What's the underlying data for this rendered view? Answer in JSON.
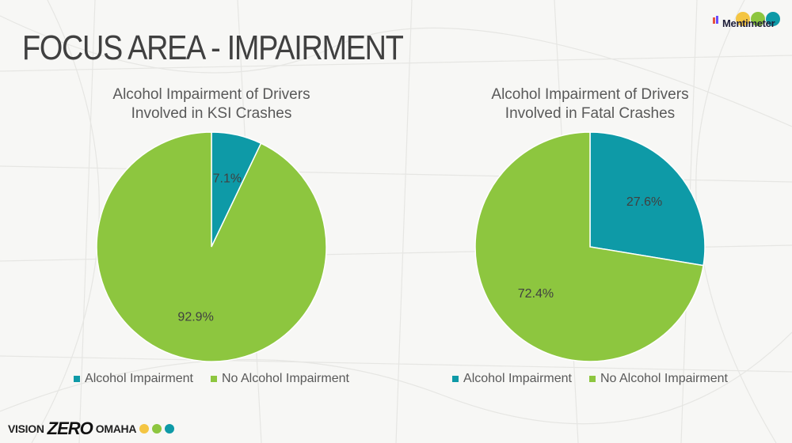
{
  "slide": {
    "title": "FOCUS AREA - IMPAIRMENT",
    "branding": {
      "mentimeter_label": "Mentimeter",
      "footer_vision": "VISION",
      "footer_zero": "ZERO",
      "footer_omaha": "OMAHA"
    }
  },
  "colors": {
    "alcohol": "#0e9aa7",
    "no_alcohol": "#8dc63f",
    "menti_yellow": "#f4c542",
    "menti_green": "#8dc63f",
    "menti_teal": "#0e9aa7"
  },
  "chart_data": [
    {
      "type": "pie",
      "title_line1": "Alcohol Impairment of Drivers",
      "title_line2": "Involved in KSI Crashes",
      "categories": [
        "Alcohol Impairment",
        "No Alcohol Impairment"
      ],
      "values": [
        7.1,
        92.9
      ],
      "labels": [
        "7.1%",
        "92.9%"
      ],
      "legend_position": "bottom"
    },
    {
      "type": "pie",
      "title_line1": "Alcohol Impairment of Drivers",
      "title_line2": "Involved in Fatal Crashes",
      "categories": [
        "Alcohol Impairment",
        "No Alcohol Impairment"
      ],
      "values": [
        27.6,
        72.4
      ],
      "labels": [
        "27.6%",
        "72.4%"
      ],
      "legend_position": "bottom"
    }
  ]
}
